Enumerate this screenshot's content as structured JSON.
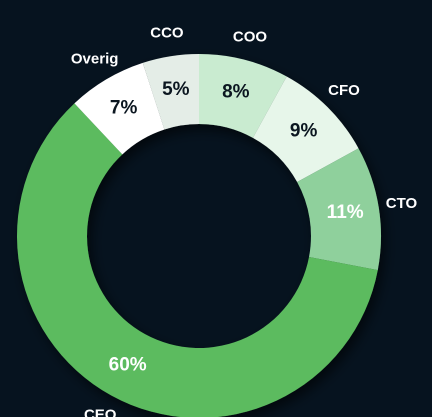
{
  "chart_data": {
    "type": "donut",
    "categories": [
      "COO",
      "CFO",
      "CTO",
      "CEO",
      "Overig",
      "CCO"
    ],
    "values": [
      8,
      9,
      11,
      60,
      7,
      5
    ],
    "value_labels": [
      "8%",
      "9%",
      "11%",
      "60%",
      "7%",
      "5%"
    ],
    "colors": [
      "#c9ebd0",
      "#e7f6ea",
      "#8fd09c",
      "#5cbb5e",
      "#ffffff",
      "#e4ede7"
    ]
  }
}
